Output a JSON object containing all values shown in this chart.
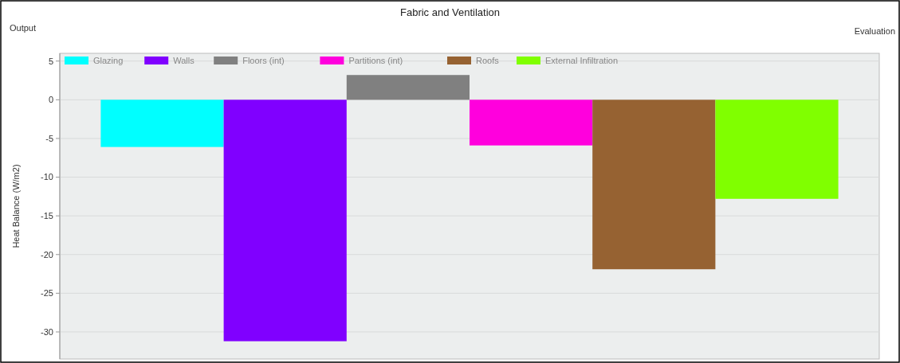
{
  "chart_data": {
    "type": "bar",
    "title": "Fabric and Ventilation",
    "ylabel": "Heat Balance (W/m2)",
    "annotations": [
      "Output",
      "Evaluation"
    ],
    "categories": [
      null
    ],
    "series": [
      {
        "name": "Glazing",
        "color": "#00ffff",
        "values": [
          -6.1
        ]
      },
      {
        "name": "Walls",
        "color": "#8000ff",
        "values": [
          -31.2
        ]
      },
      {
        "name": "Floors (int)",
        "color": "#808080",
        "values": [
          3.2
        ]
      },
      {
        "name": "Partitions (int)",
        "color": "#ff00dd",
        "values": [
          -5.9
        ]
      },
      {
        "name": "Roofs",
        "color": "#966232",
        "values": [
          -21.9
        ]
      },
      {
        "name": "External Infiltration",
        "color": "#80ff00",
        "values": [
          -12.8
        ]
      }
    ],
    "ylim": [
      -33.5,
      6
    ],
    "yticks": [
      {
        "value": 5,
        "label": "5"
      },
      {
        "value": 0,
        "label": "0"
      },
      {
        "value": -5,
        "label": "-5"
      },
      {
        "value": -10,
        "label": "-10"
      },
      {
        "value": -15,
        "label": "-15"
      },
      {
        "value": -20,
        "label": "-20"
      },
      {
        "value": -25,
        "label": "-25"
      },
      {
        "value": -30,
        "label": "-30"
      }
    ],
    "grid": "y",
    "legend": "top left"
  }
}
